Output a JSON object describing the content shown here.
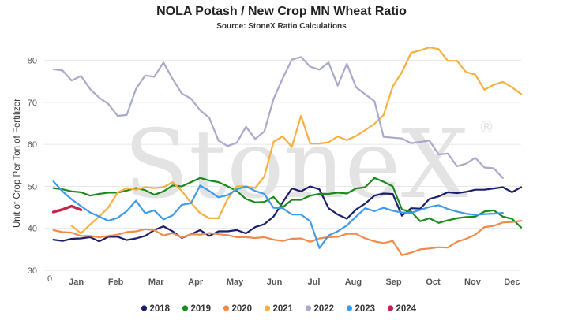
{
  "chart_data": {
    "type": "line",
    "title": "NOLA Potash / New Crop MN Wheat Ratio",
    "subtitle": "Source: StoneX Ratio Calculations",
    "ylabel": "Unit of Crop Per Ton of Fertilizer",
    "xlabel": "",
    "watermark": "StoneX",
    "ylim": [
      30,
      85
    ],
    "xlim": [
      0,
      52
    ],
    "yticks": [
      30,
      40,
      50,
      60,
      70,
      80
    ],
    "x_origin_label": "0",
    "month_ticks": [
      {
        "label": "Jan",
        "week": 3.5
      },
      {
        "label": "Feb",
        "week": 7.8
      },
      {
        "label": "Mar",
        "week": 12.2
      },
      {
        "label": "Apr",
        "week": 16.5
      },
      {
        "label": "May",
        "week": 20.8
      },
      {
        "label": "Jun",
        "week": 25.1
      },
      {
        "label": "Jul",
        "week": 29.4
      },
      {
        "label": "Aug",
        "week": 33.7
      },
      {
        "label": "Sep",
        "week": 38.1
      },
      {
        "label": "Oct",
        "week": 42.4
      },
      {
        "label": "Nov",
        "week": 46.7
      },
      {
        "label": "Dec",
        "week": 51.0
      }
    ],
    "grid": true,
    "legend_position": "bottom",
    "series": [
      {
        "name": "2018",
        "color": "#1b1f6b",
        "start_week": 1,
        "values": [
          37.3,
          37.0,
          37.5,
          37.6,
          37.9,
          36.9,
          38.0,
          38.0,
          37.2,
          37.6,
          38.2,
          39.6,
          40.5,
          39.3,
          37.7,
          38.6,
          39.6,
          38.2,
          39.3,
          39.3,
          39.6,
          38.8,
          40.3,
          41.0,
          42.8,
          46.2,
          49.5,
          48.8,
          50.0,
          49.3,
          44.8,
          43.3,
          42.3,
          44.5,
          45.9,
          47.8,
          48.3,
          48.2,
          43.0,
          44.8,
          44.7,
          47.0,
          47.6,
          48.6,
          48.4,
          48.7,
          49.2,
          49.2,
          49.5,
          49.8,
          48.6,
          49.8
        ]
      },
      {
        "name": "2019",
        "color": "#1a8a1a",
        "start_week": 1,
        "values": [
          49.6,
          49.3,
          48.8,
          48.6,
          47.8,
          48.2,
          48.5,
          48.5,
          49.0,
          49.6,
          49.1,
          48.0,
          48.8,
          50.2,
          50.0,
          51.0,
          52.0,
          51.4,
          51.0,
          50.0,
          48.9,
          47.0,
          46.2,
          46.3,
          47.5,
          45.0,
          46.8,
          46.8,
          47.8,
          48.2,
          48.2,
          48.5,
          48.3,
          49.5,
          49.8,
          52.0,
          51.1,
          50.0,
          44.5,
          44.0,
          41.7,
          42.4,
          41.3,
          41.9,
          42.4,
          42.7,
          42.8,
          44.0,
          44.3,
          42.8,
          42.3,
          40.2
        ]
      },
      {
        "name": "2020",
        "color": "#f08a4b",
        "start_week": 1,
        "values": [
          39.6,
          39.1,
          39.0,
          38.2,
          38.2,
          37.9,
          38.2,
          38.5,
          39.1,
          39.3,
          39.8,
          39.6,
          38.3,
          38.9,
          37.8,
          38.6,
          38.5,
          38.9,
          38.6,
          38.4,
          37.9,
          37.9,
          37.7,
          37.9,
          37.3,
          37.0,
          37.5,
          37.6,
          36.8,
          37.6,
          37.9,
          38.0,
          38.7,
          38.7,
          37.6,
          36.9,
          36.5,
          37.0,
          33.6,
          34.2,
          35.0,
          35.2,
          35.5,
          35.4,
          36.8,
          37.5,
          38.5,
          40.3,
          40.6,
          41.4,
          41.5,
          41.8
        ]
      },
      {
        "name": "2021",
        "color": "#f5b041",
        "start_week": 3,
        "values": [
          40.6,
          38.8,
          40.9,
          42.8,
          45.0,
          48.5,
          49.6,
          49.2,
          49.8,
          49.6,
          49.8,
          51.0,
          48.9,
          46.1,
          43.6,
          42.4,
          42.4,
          47.0,
          50.0,
          50.0,
          49.6,
          52.4,
          60.6,
          61.9,
          59.4,
          66.8,
          60.2,
          60.2,
          60.5,
          61.9,
          61.0,
          62.0,
          63.4,
          64.9,
          67.0,
          73.8,
          77.2,
          81.8,
          82.4,
          83.1,
          82.7,
          79.9,
          79.9,
          77.2,
          76.6,
          73.0,
          74.2,
          74.9,
          73.6,
          72.0
        ]
      },
      {
        "name": "2022",
        "color": "#a9a9c9",
        "start_week": 1,
        "values": [
          77.9,
          77.6,
          75.2,
          76.3,
          73.2,
          71.1,
          69.6,
          66.8,
          67.0,
          73.2,
          76.4,
          76.1,
          79.5,
          75.6,
          72.1,
          70.9,
          68.1,
          66.3,
          60.9,
          59.6,
          60.4,
          64.2,
          61.3,
          63.1,
          70.8,
          75.7,
          80.2,
          80.8,
          78.5,
          77.8,
          79.5,
          74.0,
          79.2,
          73.6,
          71.9,
          70.3,
          61.8,
          61.6,
          61.4,
          60.3,
          60.6,
          60.9,
          57.6,
          57.8,
          54.8,
          55.4,
          56.8,
          54.5,
          54.3,
          52.0
        ]
      },
      {
        "name": "2023",
        "color": "#3d9be9",
        "start_week": 1,
        "values": [
          51.2,
          48.8,
          46.9,
          45.3,
          43.8,
          42.8,
          41.8,
          42.5,
          44.1,
          46.6,
          43.6,
          44.3,
          42.1,
          43.1,
          45.6,
          46.0,
          50.2,
          48.9,
          47.4,
          47.9,
          49.3,
          50.0,
          48.9,
          48.2,
          44.9,
          44.8,
          43.3,
          43.3,
          41.7,
          35.3,
          38.3,
          39.3,
          40.7,
          42.8,
          44.8,
          44.1,
          44.9,
          44.2,
          43.8,
          43.7,
          44.4,
          45.1,
          45.5,
          44.6,
          44.0,
          43.5,
          43.2,
          43.4,
          43.5,
          43.7
        ]
      },
      {
        "name": "2024",
        "color": "#c8224a",
        "start_week": 1,
        "values": [
          43.9,
          44.5,
          45.3,
          44.4
        ]
      }
    ]
  }
}
